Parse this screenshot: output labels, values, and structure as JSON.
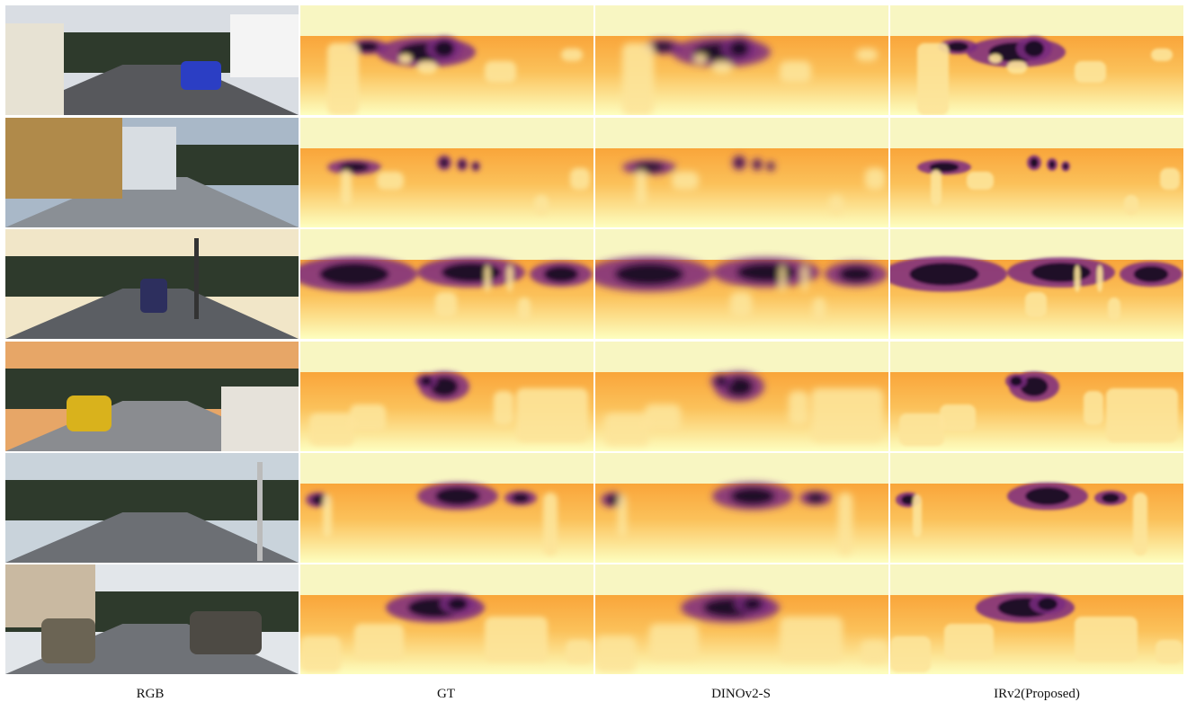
{
  "figure": {
    "columns": [
      {
        "key": "rgb",
        "label": "RGB"
      },
      {
        "key": "gt",
        "label": "GT"
      },
      {
        "key": "dino",
        "label": "DINOv2-S"
      },
      {
        "key": "irv2",
        "label": "IRv2(Proposed)"
      }
    ],
    "rows": [
      {
        "scene": "residential-street-van-blue-car"
      },
      {
        "scene": "building-wall-glass-facade"
      },
      {
        "scene": "road-junction-traffic-sign"
      },
      {
        "scene": "street-yellow-car-gate"
      },
      {
        "scene": "intersection-crosswalk"
      },
      {
        "scene": "narrow-street-parked-cars"
      }
    ],
    "colormap": {
      "name": "inferno",
      "near": "#fdfec0",
      "mid": "#f9a53a",
      "far": "#12061f",
      "sky_band": "#f8f6c2"
    }
  }
}
